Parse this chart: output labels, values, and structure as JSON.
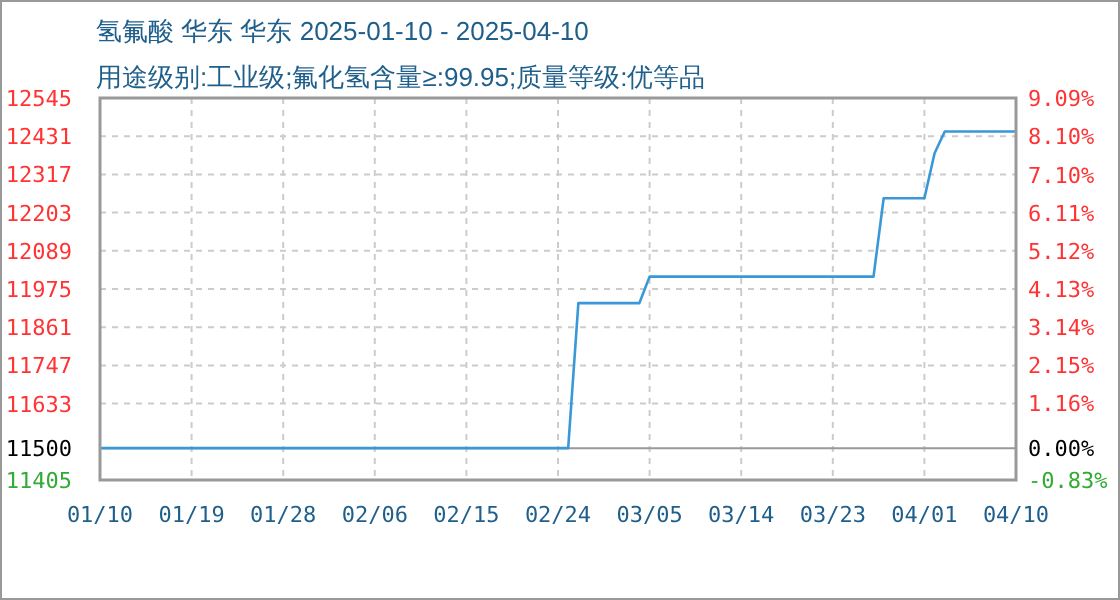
{
  "chart_data": {
    "type": "line",
    "title": "氢氟酸 华东 华东 2025-01-10 - 2025-04-10",
    "subtitle": "用途级别:工业级;氟化氢含量≥:99.95;质量等级:优等品",
    "x": [
      "2025-01-10",
      "2025-02-25",
      "2025-02-26",
      "2025-03-04",
      "2025-03-05",
      "2025-03-27",
      "2025-03-28",
      "2025-04-01",
      "2025-04-02",
      "2025-04-03",
      "2025-04-10"
    ],
    "series": [
      {
        "color": "#3a98d8",
        "values": [
          11500,
          11500,
          11933,
          11933,
          12012,
          12012,
          12246,
          12246,
          12380,
          12445,
          12445
        ]
      }
    ],
    "xlim": [
      "2025-01-10",
      "2025-04-10"
    ],
    "xticks": [
      {
        "value": "2025-01-10",
        "label": "01/10"
      },
      {
        "value": "2025-01-19",
        "label": "01/19"
      },
      {
        "value": "2025-01-28",
        "label": "01/28"
      },
      {
        "value": "2025-02-06",
        "label": "02/06"
      },
      {
        "value": "2025-02-15",
        "label": "02/15"
      },
      {
        "value": "2025-02-24",
        "label": "02/24"
      },
      {
        "value": "2025-03-05",
        "label": "03/05"
      },
      {
        "value": "2025-03-14",
        "label": "03/14"
      },
      {
        "value": "2025-03-23",
        "label": "03/23"
      },
      {
        "value": "2025-04-01",
        "label": "04/01"
      },
      {
        "value": "2025-04-10",
        "label": "04/10"
      }
    ],
    "ylim": [
      11405,
      12545
    ],
    "yticks": [
      11405,
      11500,
      11633,
      11747,
      11861,
      11975,
      12089,
      12203,
      12317,
      12431,
      12545
    ],
    "y2lim": [
      -0.83,
      9.09
    ],
    "y2ticks": [
      {
        "value": -0.83,
        "label": "-0.83%"
      },
      {
        "value": 0,
        "label": "0.00%"
      },
      {
        "value": 1.16,
        "label": "1.16%"
      },
      {
        "value": 2.15,
        "label": "2.15%"
      },
      {
        "value": 3.14,
        "label": "3.14%"
      },
      {
        "value": 4.13,
        "label": "4.13%"
      },
      {
        "value": 5.12,
        "label": "5.12%"
      },
      {
        "value": 6.11,
        "label": "6.11%"
      },
      {
        "value": 7.1,
        "label": "7.10%"
      },
      {
        "value": 8.1,
        "label": "8.10%"
      },
      {
        "value": 9.09,
        "label": "9.09%"
      }
    ],
    "grid": true
  }
}
